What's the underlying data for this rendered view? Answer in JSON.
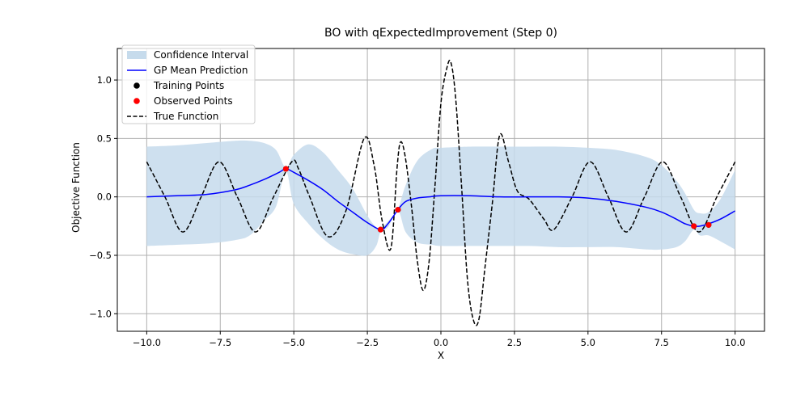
{
  "chart_data": {
    "type": "line",
    "title": "BO with qExpectedImprovement (Step 0)",
    "xlabel": "X",
    "ylabel": "Objective Function",
    "xlim": [
      -11.0,
      11.0
    ],
    "ylim": [
      -1.15,
      1.27
    ],
    "xticks": [
      -10.0,
      -7.5,
      -5.0,
      -2.5,
      0.0,
      2.5,
      5.0,
      7.5,
      10.0
    ],
    "yticks": [
      -1.0,
      -0.5,
      0.0,
      0.5,
      1.0
    ],
    "xtick_labels": [
      "−10.0",
      "−7.5",
      "−5.0",
      "−2.5",
      "0.0",
      "2.5",
      "5.0",
      "7.5",
      "10.0"
    ],
    "ytick_labels": [
      "−1.0",
      "−0.5",
      "0.0",
      "0.5",
      "1.0"
    ],
    "grid": true,
    "legend_position": "top-left",
    "legend": [
      {
        "label": "Confidence Interval",
        "kind": "patch",
        "color": "#c6dbec"
      },
      {
        "label": "GP Mean Prediction",
        "kind": "line",
        "color": "#0000ff"
      },
      {
        "label": "Training Points",
        "kind": "marker",
        "color": "#000000"
      },
      {
        "label": "Observed Points",
        "kind": "marker",
        "color": "#ff0000"
      },
      {
        "label": "True Function",
        "kind": "dashed",
        "color": "#000000"
      }
    ],
    "series": [
      {
        "name": "Confidence Interval",
        "kind": "band",
        "color": "#c6dbec",
        "x": [
          -10,
          -9,
          -8,
          -7,
          -6.5,
          -6,
          -5.6,
          -5.27,
          -5,
          -4.5,
          -4,
          -3.5,
          -3,
          -2.5,
          -2.2,
          -2.05,
          -1.8,
          -1.46,
          -1.2,
          -0.8,
          -0.3,
          0,
          1,
          2,
          3,
          4,
          5,
          6,
          7,
          7.5,
          8,
          8.3,
          8.6,
          8.8,
          9.1,
          9.5,
          10
        ],
        "upper": [
          0.43,
          0.44,
          0.46,
          0.48,
          0.48,
          0.46,
          0.4,
          0.25,
          0.36,
          0.45,
          0.38,
          0.23,
          0.07,
          -0.16,
          -0.26,
          -0.27,
          -0.21,
          -0.1,
          0.1,
          0.31,
          0.41,
          0.42,
          0.43,
          0.43,
          0.43,
          0.43,
          0.42,
          0.4,
          0.34,
          0.27,
          0.14,
          0.03,
          -0.11,
          -0.14,
          -0.13,
          -0.02,
          0.23
        ],
        "lower": [
          -0.42,
          -0.41,
          -0.4,
          -0.37,
          -0.33,
          -0.2,
          -0.08,
          0.22,
          -0.06,
          -0.23,
          -0.36,
          -0.45,
          -0.49,
          -0.5,
          -0.42,
          -0.3,
          -0.26,
          -0.12,
          -0.3,
          -0.39,
          -0.41,
          -0.42,
          -0.42,
          -0.42,
          -0.42,
          -0.43,
          -0.43,
          -0.43,
          -0.45,
          -0.45,
          -0.43,
          -0.38,
          -0.28,
          -0.33,
          -0.33,
          -0.38,
          -0.45
        ]
      },
      {
        "name": "GP Mean Prediction",
        "kind": "line",
        "color": "#0000ff",
        "x": [
          -10,
          -9,
          -8,
          -7,
          -6.5,
          -6,
          -5.5,
          -5.27,
          -5,
          -4.5,
          -4,
          -3.5,
          -3,
          -2.5,
          -2.05,
          -1.8,
          -1.46,
          -1.2,
          -0.8,
          -0.4,
          0,
          1,
          2,
          3,
          4,
          5,
          6,
          7,
          7.5,
          8,
          8.3,
          8.6,
          8.8,
          9.1,
          9.5,
          10
        ],
        "y": [
          0.0,
          0.01,
          0.02,
          0.06,
          0.1,
          0.15,
          0.21,
          0.24,
          0.21,
          0.14,
          0.06,
          -0.04,
          -0.13,
          -0.22,
          -0.28,
          -0.23,
          -0.11,
          -0.04,
          -0.01,
          0.0,
          0.01,
          0.01,
          0.0,
          0.0,
          0.0,
          -0.01,
          -0.04,
          -0.09,
          -0.13,
          -0.19,
          -0.23,
          -0.25,
          -0.25,
          -0.23,
          -0.19,
          -0.12
        ]
      },
      {
        "name": "True Function",
        "kind": "dashed",
        "color": "#000000",
        "x": [
          -10,
          -9.38,
          -8.77,
          -8.15,
          -7.54,
          -6.92,
          -6.3,
          -5.69,
          -5.07,
          -4.84,
          -4.46,
          -3.84,
          -3.23,
          -2.61,
          -2.27,
          -2.0,
          -1.7,
          -1.49,
          -1.37,
          -1.21,
          -1.0,
          -0.8,
          -0.6,
          -0.4,
          -0.2,
          0.0,
          0.2,
          0.34,
          0.5,
          0.7,
          0.9,
          1.1,
          1.29,
          1.5,
          1.75,
          2.0,
          2.3,
          2.6,
          3.0,
          3.5,
          3.84,
          4.46,
          5.07,
          5.69,
          6.3,
          6.92,
          7.54,
          8.15,
          8.77,
          9.38,
          10.0
        ],
        "y": [
          0.3,
          0.0,
          -0.3,
          0.0,
          0.3,
          0.0,
          -0.3,
          0.0,
          0.3,
          0.24,
          0.0,
          -0.34,
          -0.12,
          0.5,
          0.27,
          -0.2,
          -0.44,
          0.25,
          0.47,
          0.34,
          -0.08,
          -0.55,
          -0.8,
          -0.55,
          0.1,
          0.8,
          1.1,
          1.15,
          0.85,
          0.1,
          -0.7,
          -1.05,
          -1.05,
          -0.6,
          -0.05,
          0.53,
          0.3,
          0.05,
          -0.02,
          -0.19,
          -0.28,
          0.0,
          0.3,
          0.0,
          -0.3,
          0.0,
          0.3,
          0.0,
          -0.3,
          0.0,
          0.3
        ]
      },
      {
        "name": "Training Points",
        "kind": "markers",
        "color": "#000000",
        "x": [
          -5.27,
          -2.05,
          -1.46,
          8.6,
          9.1
        ],
        "y": [
          0.24,
          -0.28,
          -0.11,
          -0.25,
          -0.24
        ]
      },
      {
        "name": "Observed Points",
        "kind": "markers",
        "color": "#ff0000",
        "x": [
          -5.27,
          -2.05,
          -1.46,
          8.6,
          9.1
        ],
        "y": [
          0.24,
          -0.28,
          -0.11,
          -0.25,
          -0.24
        ]
      }
    ]
  }
}
